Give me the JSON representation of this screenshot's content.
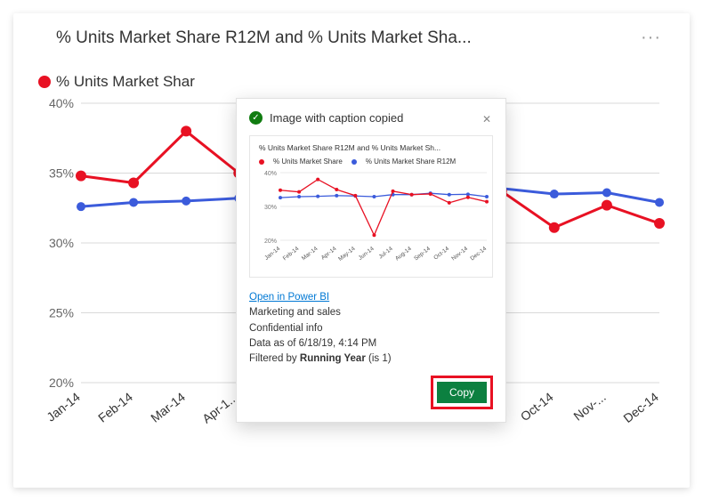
{
  "title": "% Units Market Share R12M and % Units Market Sha...",
  "legend_main": "% Units Market Shar",
  "more_icon": "···",
  "colors": {
    "series_share": "#e81123",
    "series_r12m": "#3b5bdb",
    "grid": "#d9d9d9",
    "axis_text": "#666666",
    "xtext": "#333333",
    "bg": "#ffffff"
  },
  "chart": {
    "type": "line",
    "y_axis": {
      "min": 20,
      "max": 40,
      "step": 5,
      "format_suffix": "%"
    },
    "x_labels": [
      "Jan-14",
      "Feb-14",
      "Mar-14",
      "Apr-1...",
      "May-...",
      "Jun-14",
      "Jul-14",
      "Aug-...",
      "Sep-14",
      "Oct-14",
      "Nov-...",
      "Dec-14"
    ],
    "series": {
      "share": {
        "label": "% Units Market Share",
        "color": "#e81123",
        "line_width": 3,
        "marker_size": 6,
        "values": [
          34.8,
          34.3,
          38.0,
          35.0,
          33.2,
          21.5,
          34.5,
          33.5,
          33.7,
          31.1,
          32.7,
          31.4
        ]
      },
      "r12m": {
        "label": "% Units Market Share R12M",
        "color": "#3b5bdb",
        "line_width": 3,
        "marker_size": 5,
        "values": [
          32.6,
          32.9,
          33.0,
          33.2,
          33.1,
          32.9,
          33.5,
          33.5,
          33.9,
          33.5,
          33.6,
          32.9
        ]
      }
    }
  },
  "dialog": {
    "heading": "Image with caption copied",
    "thumb_title": "% Units Market Share R12M and % Units Market Sh...",
    "thumb_legend_share": "% Units Market Share",
    "thumb_legend_r12m": "% Units Market Share R12M",
    "thumb_y_ticks": [
      "40%",
      "30%",
      "20%"
    ],
    "thumb_x_labels": [
      "Jan-14",
      "Feb-14",
      "Mar-14",
      "Apr-14",
      "May-14",
      "Jun-14",
      "Jul-14",
      "Aug-14",
      "Sep-14",
      "Oct-14",
      "Nov-14",
      "Dec-14"
    ],
    "link": "Open in Power BI",
    "meta1": "Marketing and sales",
    "meta2": "Confidential info",
    "meta3": "Data as of 6/18/19, 4:14 PM",
    "filter_prefix": "Filtered by ",
    "filter_bold": "Running Year",
    "filter_suffix": " (is 1)",
    "button": "Copy"
  }
}
